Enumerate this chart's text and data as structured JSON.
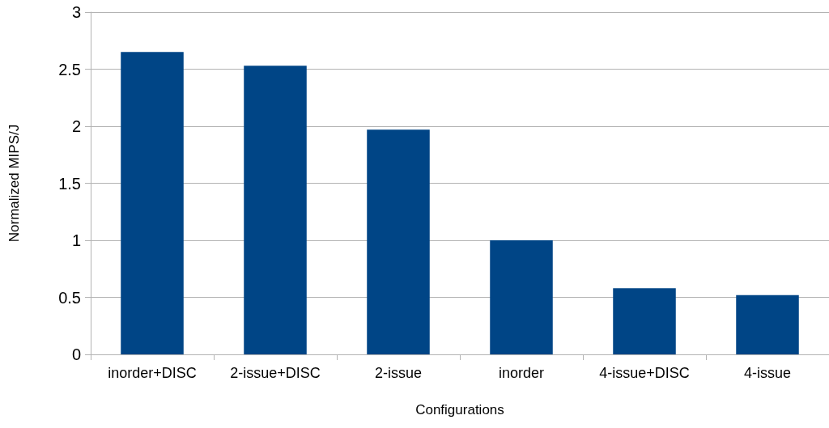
{
  "chart_data": {
    "type": "bar",
    "xlabel": "Configurations",
    "ylabel": "Normalized MIPS/J",
    "categories": [
      "inorder+DISC",
      "2-issue+DISC",
      "2-issue",
      "inorder",
      "4-issue+DISC",
      "4-issue"
    ],
    "values": [
      2.65,
      2.53,
      1.97,
      1.0,
      0.58,
      0.52
    ],
    "color": "#004586",
    "ylim": [
      0,
      3
    ],
    "yticks": [
      0,
      0.5,
      1,
      1.5,
      2,
      2.5,
      3
    ],
    "grid": "y"
  }
}
